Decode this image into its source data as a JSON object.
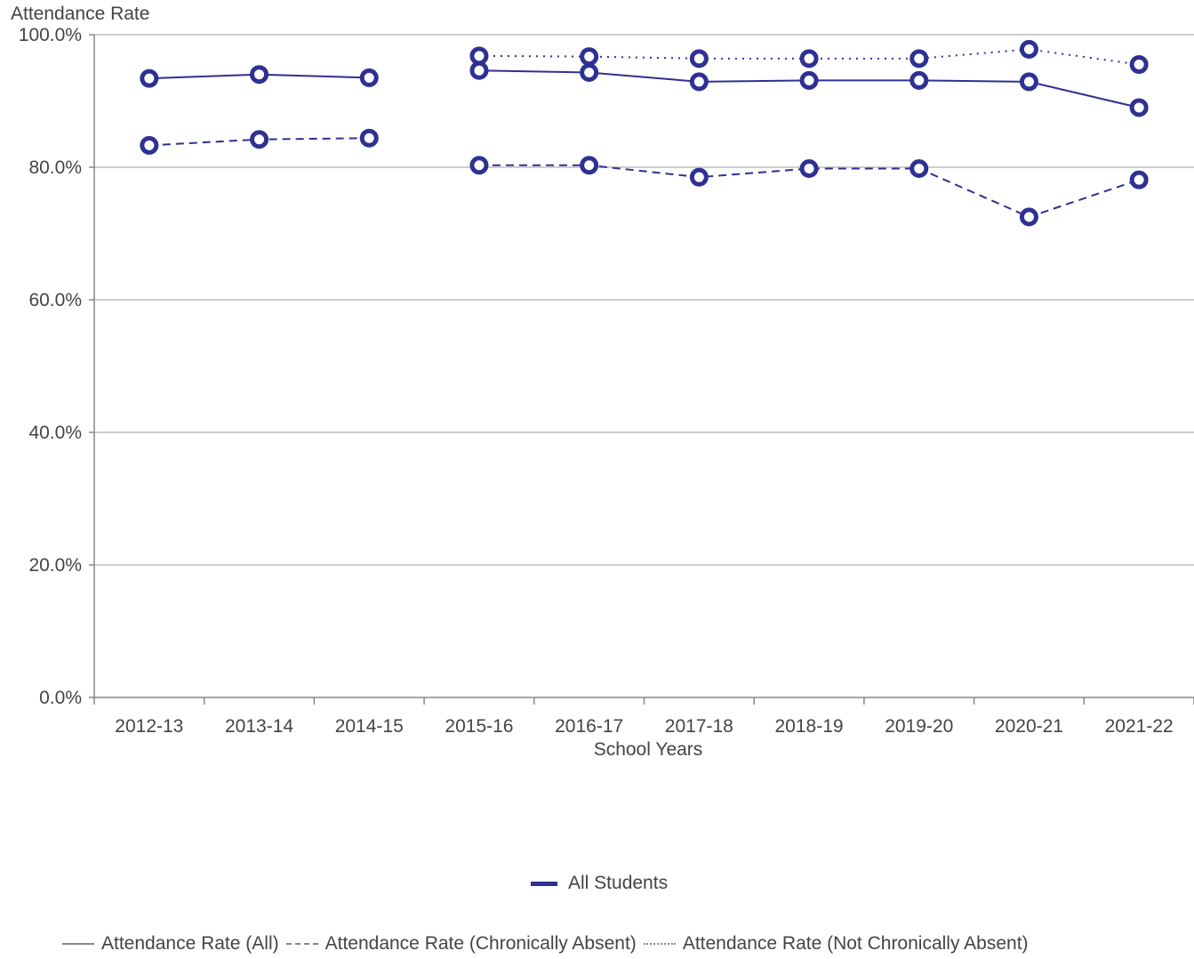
{
  "chart_data": {
    "type": "line",
    "ylabel": "Attendance Rate",
    "xlabel": "School Years",
    "ylim": [
      0,
      100
    ],
    "y_ticks": [
      0,
      20,
      40,
      60,
      80,
      100
    ],
    "y_tick_labels": [
      "0.0%",
      "20.0%",
      "40.0%",
      "60.0%",
      "80.0%",
      "100.0%"
    ],
    "categories": [
      "2012-13",
      "2013-14",
      "2014-15",
      "2015-16",
      "2016-17",
      "2017-18",
      "2018-19",
      "2019-20",
      "2020-21",
      "2021-22"
    ],
    "grid": "horizontal",
    "legend_placement": "bottom",
    "series_color": "#2e3192",
    "group_legend": {
      "label": "All Students",
      "color": "#2e3192"
    },
    "style_legend": [
      {
        "label": "Attendance Rate (All)",
        "style": "solid"
      },
      {
        "label": "Attendance Rate (Chronically Absent)",
        "style": "dashed"
      },
      {
        "label": "Attendance Rate (Not Chronically Absent)",
        "style": "dotted"
      }
    ],
    "series": [
      {
        "name": "Attendance Rate (All)",
        "style": "solid",
        "values": [
          93.4,
          94.0,
          93.5,
          94.6,
          94.3,
          92.9,
          93.1,
          93.1,
          92.9,
          89.0
        ]
      },
      {
        "name": "Attendance Rate (Chronically Absent)",
        "style": "dashed",
        "values": [
          83.3,
          84.2,
          84.4,
          80.3,
          80.3,
          78.5,
          79.8,
          79.8,
          72.5,
          78.1
        ]
      },
      {
        "name": "Attendance Rate (Not Chronically Absent)",
        "style": "dotted",
        "values": [
          null,
          null,
          null,
          96.8,
          96.7,
          96.4,
          96.4,
          96.4,
          97.8,
          95.5
        ]
      }
    ]
  }
}
